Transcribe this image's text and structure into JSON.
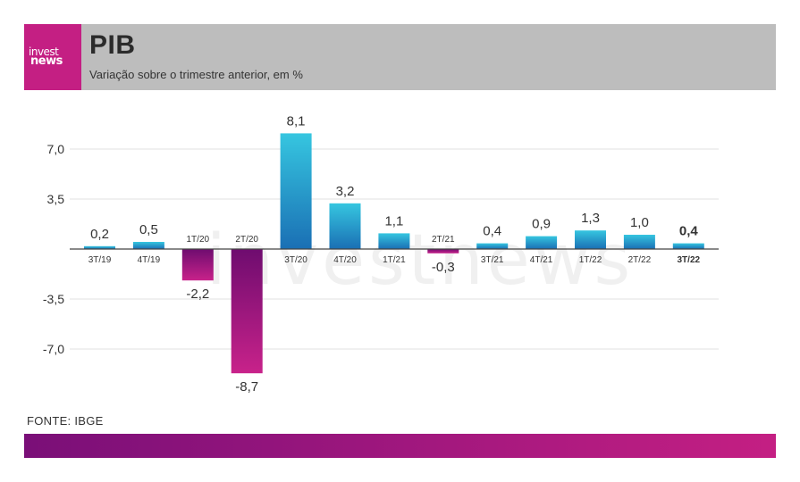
{
  "header": {
    "logo_line1": "invest",
    "logo_line2": "news",
    "title": "PIB",
    "subtitle": "Variação sobre o trimestre anterior, em %"
  },
  "footer": {
    "source": "FONTE: IBGE"
  },
  "colors": {
    "positive_top": "#36c6e0",
    "positive_bottom": "#1a6fb4",
    "negative_top": "#6e0c6f",
    "negative_bottom": "#c8228a",
    "accent": "#c41f83",
    "header_bg": "#bdbdbd"
  },
  "chart_data": {
    "type": "bar",
    "categories": [
      "3T/19",
      "4T/19",
      "1T/20",
      "2T/20",
      "3T/20",
      "4T/20",
      "1T/21",
      "2T/21",
      "3T/21",
      "4T/21",
      "1T/22",
      "2T/22",
      "3T/22"
    ],
    "values": [
      0.2,
      0.5,
      -2.2,
      -8.7,
      8.1,
      3.2,
      1.1,
      -0.3,
      0.4,
      0.9,
      1.3,
      1.0,
      0.4
    ],
    "value_labels": [
      "0,2",
      "0,5",
      "-2,2",
      "-8,7",
      "8,1",
      "3,2",
      "1,1",
      "-0,3",
      "0,4",
      "0,9",
      "1,3",
      "1,0",
      "0,4"
    ],
    "highlight": "3T/22",
    "yticks": [
      7.0,
      3.5,
      -3.5,
      -7.0
    ],
    "ytick_labels": [
      "7,0",
      "3,5",
      "-3,5",
      "-7,0"
    ],
    "ylim": [
      -8.7,
      8.1
    ],
    "grid": true,
    "watermark": "investnews"
  }
}
